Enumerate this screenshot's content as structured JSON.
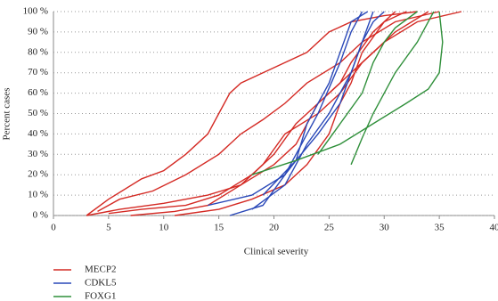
{
  "chart_data": {
    "type": "line",
    "x_label": "Clinical severity",
    "y_label": "Percent cases",
    "xlim": [
      0,
      40
    ],
    "xticks": [
      0,
      5,
      10,
      15,
      20,
      25,
      30,
      35,
      40
    ],
    "ylim": [
      0,
      100
    ],
    "yticks": [
      {
        "value": 0,
        "label": "0 %"
      },
      {
        "value": 10,
        "label": "10 %"
      },
      {
        "value": 20,
        "label": "20 %"
      },
      {
        "value": 30,
        "label": "30 %"
      },
      {
        "value": 40,
        "label": "40 %"
      },
      {
        "value": 50,
        "label": "50 %"
      },
      {
        "value": 60,
        "label": "60 %"
      },
      {
        "value": 70,
        "label": "70 %"
      },
      {
        "value": 80,
        "label": "80 %"
      },
      {
        "value": 90,
        "label": "90 %"
      },
      {
        "value": 100,
        "label": "100 %"
      }
    ],
    "grid": true,
    "series": [
      {
        "name": "MECP2",
        "color": "#d42a24",
        "lines": [
          {
            "x": [
              3,
              5,
              8,
              10,
              12,
              14,
              15,
              16,
              17,
              19,
              21,
              23,
              25,
              27,
              30,
              33
            ],
            "values": [
              0,
              8,
              18,
              22,
              30,
              40,
              50,
              60,
              65,
              70,
              75,
              80,
              90,
              95,
              98,
              100
            ]
          },
          {
            "x": [
              4,
              6,
              9,
              12,
              15,
              17,
              19,
              21,
              23,
              26,
              28,
              31,
              35
            ],
            "values": [
              2,
              8,
              12,
              20,
              30,
              40,
              47,
              55,
              65,
              75,
              85,
              95,
              100
            ]
          },
          {
            "x": [
              3,
              6,
              10,
              14,
              17,
              19,
              21,
              24,
              26,
              28,
              30,
              33,
              37
            ],
            "values": [
              0,
              3,
              6,
              10,
              15,
              25,
              40,
              50,
              60,
              75,
              85,
              95,
              100
            ]
          },
          {
            "x": [
              5,
              8,
              12,
              15,
              18,
              20,
              22,
              25,
              27,
              29,
              31,
              34
            ],
            "values": [
              1,
              3,
              5,
              10,
              20,
              30,
              45,
              60,
              70,
              80,
              90,
              100
            ]
          },
          {
            "x": [
              7,
              11,
              14,
              17,
              20,
              22,
              24,
              26,
              27,
              29,
              31
            ],
            "values": [
              0,
              2,
              5,
              15,
              25,
              35,
              55,
              65,
              75,
              90,
              100
            ]
          },
          {
            "x": [
              11,
              15,
              18,
              21,
              23,
              25,
              26,
              27,
              28,
              30,
              32
            ],
            "values": [
              0,
              3,
              8,
              15,
              25,
              40,
              55,
              65,
              80,
              95,
              100
            ]
          }
        ]
      },
      {
        "name": "CDKL5",
        "color": "#2a48b8",
        "lines": [
          {
            "x": [
              14,
              18,
              21,
              22,
              24,
              26,
              27,
              28
            ],
            "values": [
              5,
              10,
              20,
              30,
              50,
              75,
              90,
              100
            ]
          },
          {
            "x": [
              16,
              19,
              21,
              22,
              23,
              25,
              26,
              27,
              28.5
            ],
            "values": [
              0,
              5,
              20,
              27,
              45,
              65,
              80,
              95,
              100
            ]
          },
          {
            "x": [
              19,
              22,
              24,
              26,
              27,
              28,
              29,
              30
            ],
            "values": [
              10,
              27,
              40,
              55,
              70,
              85,
              95,
              100
            ]
          },
          {
            "x": [
              18,
              21,
              23,
              25,
              27,
              29
            ],
            "values": [
              3,
              15,
              35,
              50,
              70,
              100
            ]
          }
        ]
      },
      {
        "name": "FOXG1",
        "color": "#2f8f3a",
        "lines": [
          {
            "x": [
              27,
              28,
              29,
              30,
              31,
              33,
              34.5
            ],
            "values": [
              25,
              38,
              50,
              60,
              70,
              85,
              100
            ]
          },
          {
            "x": [
              18,
              22,
              26,
              29,
              32,
              34,
              35,
              35.3,
              35
            ],
            "values": [
              20,
              27,
              35,
              45,
              55,
              62,
              70,
              85,
              100
            ]
          },
          {
            "x": [
              24,
              26,
              28,
              29,
              30,
              31,
              33
            ],
            "values": [
              30,
              45,
              60,
              75,
              85,
              92,
              100
            ]
          }
        ]
      }
    ]
  }
}
